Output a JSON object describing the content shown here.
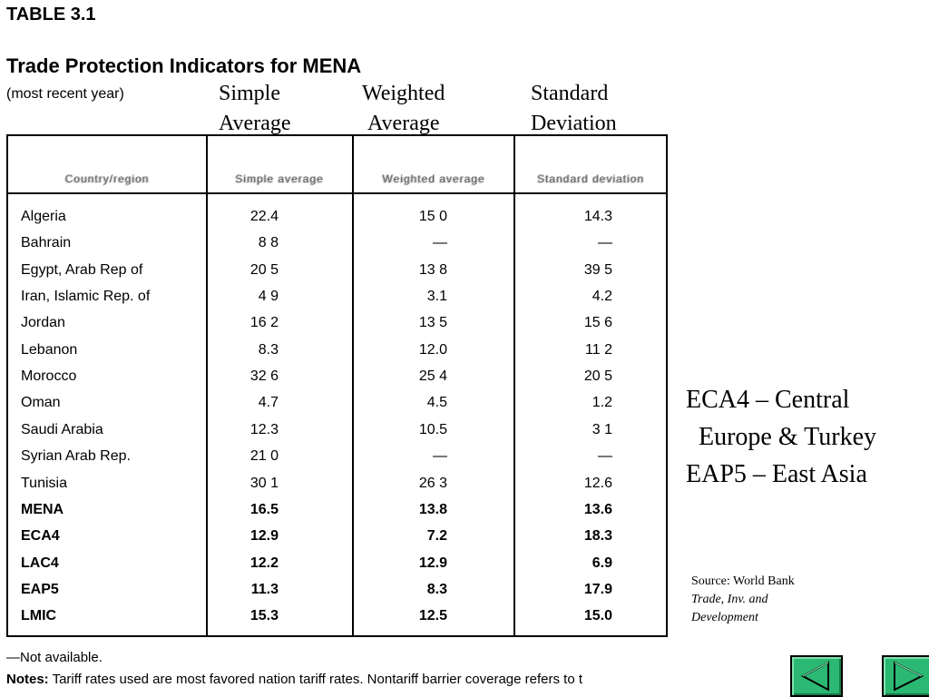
{
  "document": {
    "table_label": "TABLE 3.1",
    "title": "Trade Protection Indicators for MENA",
    "subtitle": "(most recent year)"
  },
  "column_overlay": {
    "simple": [
      "Simple",
      "Average"
    ],
    "weighted": [
      "Weighted",
      "Average"
    ],
    "std": [
      "Standard",
      "Deviation"
    ]
  },
  "table": {
    "headers": {
      "country": "Country/region",
      "simple": "Simple average",
      "weighted": "Weighted average",
      "std": "Standard deviation"
    },
    "rows": [
      {
        "country": "Algeria",
        "simple": "22.4",
        "weighted": "15 0",
        "std": "14.3",
        "bold": false
      },
      {
        "country": "Bahrain",
        "simple": "8 8",
        "weighted": "—",
        "std": "—",
        "bold": false
      },
      {
        "country": "Egypt, Arab Rep of",
        "simple": "20 5",
        "weighted": "13 8",
        "std": "39 5",
        "bold": false
      },
      {
        "country": "Iran, Islamic Rep. of",
        "simple": "4 9",
        "weighted": "3.1",
        "std": "4.2",
        "bold": false
      },
      {
        "country": "Jordan",
        "simple": "16 2",
        "weighted": "13 5",
        "std": "15 6",
        "bold": false
      },
      {
        "country": "Lebanon",
        "simple": "8.3",
        "weighted": "12.0",
        "std": "11 2",
        "bold": false
      },
      {
        "country": "Morocco",
        "simple": "32 6",
        "weighted": "25 4",
        "std": "20 5",
        "bold": false
      },
      {
        "country": "Oman",
        "simple": "4.7",
        "weighted": "4.5",
        "std": "1.2",
        "bold": false
      },
      {
        "country": "Saudi Arabia",
        "simple": "12.3",
        "weighted": "10.5",
        "std": "3 1",
        "bold": false
      },
      {
        "country": "Syrian Arab Rep.",
        "simple": "21 0",
        "weighted": "—",
        "std": "—",
        "bold": false
      },
      {
        "country": "Tunisia",
        "simple": "30 1",
        "weighted": "26 3",
        "std": "12.6",
        "bold": false
      },
      {
        "country": "MENA",
        "simple": "16.5",
        "weighted": "13.8",
        "std": "13.6",
        "bold": true
      },
      {
        "country": "ECA4",
        "simple": "12.9",
        "weighted": "7.2",
        "std": "18.3",
        "bold": true
      },
      {
        "country": "LAC4",
        "simple": "12.2",
        "weighted": "12.9",
        "std": "6.9",
        "bold": true
      },
      {
        "country": "EAP5",
        "simple": "11.3",
        "weighted": "8.3",
        "std": "17.9",
        "bold": true
      },
      {
        "country": "LMIC",
        "simple": "15.3",
        "weighted": "12.5",
        "std": "15.0",
        "bold": true
      }
    ]
  },
  "footnotes": {
    "not_available": "—Not available.",
    "notes_label": "Notes:",
    "notes_text": " Tariff rates used are most favored nation tariff rates. Nontariff barrier coverage refers to t"
  },
  "legend": {
    "line1": "ECA4 – Central",
    "line2": "Europe & Turkey",
    "line3": "EAP5 – East Asia"
  },
  "source": {
    "line1": "Source: World Bank",
    "line2": "Trade, Inv. and",
    "line3": "Development"
  },
  "nav": {
    "prev_icon": "triangle-left-icon",
    "next_icon": "triangle-right-icon",
    "button_color": "#2bb873"
  }
}
